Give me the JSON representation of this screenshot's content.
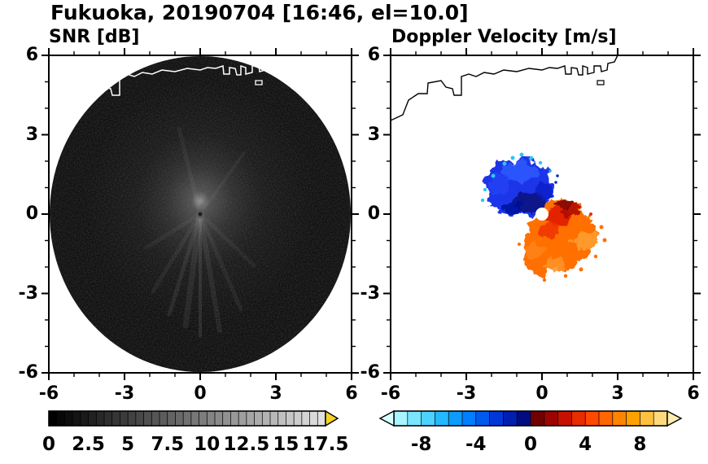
{
  "title": "Fukuoka, 20190704 [16:46, el=10.0]",
  "panels": {
    "snr": {
      "label": "SNR [dB]"
    },
    "doppler": {
      "label": "Doppler Velocity [m/s]"
    }
  },
  "axes": {
    "xlim": [
      -6,
      6
    ],
    "ylim": [
      -6,
      6
    ],
    "minor_tick_step": 1,
    "x_tick_values": [
      -6,
      -3,
      0,
      3,
      6
    ],
    "x_tick_labels": [
      "-6",
      "-3",
      "0",
      "3",
      "6"
    ],
    "y_tick_values": [
      6,
      3,
      0,
      -3,
      -6
    ],
    "y_tick_labels": [
      "6",
      "3",
      "0",
      "-3",
      "-6"
    ]
  },
  "colorbars": {
    "snr": {
      "min": 0,
      "max": 17.5,
      "cells": 35,
      "start_color": "#000000",
      "end_color": "#e0e0e0",
      "over_arrow_color": "#f5d326",
      "tick_values": [
        0,
        2.5,
        5,
        7.5,
        10,
        12.5,
        15,
        17.5
      ],
      "tick_labels": [
        "0",
        "2.5",
        "5",
        "7.5",
        "10",
        "12.5",
        "15",
        "17.5"
      ]
    },
    "doppler": {
      "min": -10,
      "max": 10,
      "segment_colors": [
        "#a8f4ff",
        "#78e6ff",
        "#4cd2ff",
        "#24b8ff",
        "#0c9cff",
        "#007eff",
        "#005af0",
        "#0038d8",
        "#001eb0",
        "#000c80",
        "#700000",
        "#9c0400",
        "#c61000",
        "#e82c00",
        "#ff4800",
        "#ff6600",
        "#ff8400",
        "#ffa200",
        "#ffc040",
        "#ffda7c"
      ],
      "under_arrow_color": "#d8ffff",
      "over_arrow_color": "#ffedad",
      "tick_values": [
        -8,
        -4,
        0,
        4,
        8
      ],
      "tick_labels": [
        "-8",
        "-4",
        "0",
        "4",
        "8"
      ]
    }
  },
  "chart_data": [
    {
      "type": "heatmap",
      "panel": "left",
      "title": "SNR [dB]",
      "xlim": [
        -6,
        6
      ],
      "ylim": [
        -6,
        6
      ],
      "x_ticks": [
        -6,
        -3,
        0,
        3,
        6
      ],
      "y_ticks": [
        -6,
        -3,
        0,
        3,
        6
      ],
      "colorbar": {
        "min": 0,
        "max": 17.5,
        "ticks": [
          0,
          2.5,
          5,
          7.5,
          10,
          12.5,
          15,
          17.5
        ],
        "colormap": "grayscale black-to-light-gray with yellow overflow arrow"
      },
      "features": [
        "full circular radar PPI disk of radius 6 centered at (0,0); background outside disk is blank white",
        "disk mostly near 0 dB (black) with fine speckle noise",
        "diffuse brighter SNR echo (about 5-10 dB gray) within ~2 of the radar center",
        "faint bright radial streaks extending mainly south and southwest from the center",
        "small bright spot with dark core at the radar location (0,0)",
        "white coastline overlay visible across the top of the disk near y=5 to 6"
      ]
    },
    {
      "type": "heatmap",
      "panel": "right",
      "title": "Doppler Velocity [m/s]",
      "xlim": [
        -6,
        6
      ],
      "ylim": [
        -6,
        6
      ],
      "x_ticks": [
        -6,
        -3,
        0,
        3,
        6
      ],
      "y_ticks": [
        -6,
        -3,
        0,
        3,
        6
      ],
      "colorbar": {
        "min": -10,
        "max": 10,
        "ticks": [
          -8,
          -4,
          0,
          4,
          8
        ],
        "colormap": "diverging: pale cyan to blue to near-black at 0, then dark red to orange to pale yellow; triangular out-of-range arrows on both ends"
      },
      "features": [
        "irregular echo blob only within ~2.5 of the radar; remainder of panel has no data (white)",
        "negative Doppler velocities (about -2 to -8 m/s, blue shades with cyan fringe) northwest of and above the radar",
        "positive velocities (about +2 to +8 m/s, red-orange shades with lighter orange fringe) southeast of and below the radar",
        "dark red near-zero band along the northeast edge of the positive lobe",
        "small white data gap at the radar position (0,0)",
        "black coastline drawn along the top of the panel near y=4 to 6"
      ]
    }
  ]
}
